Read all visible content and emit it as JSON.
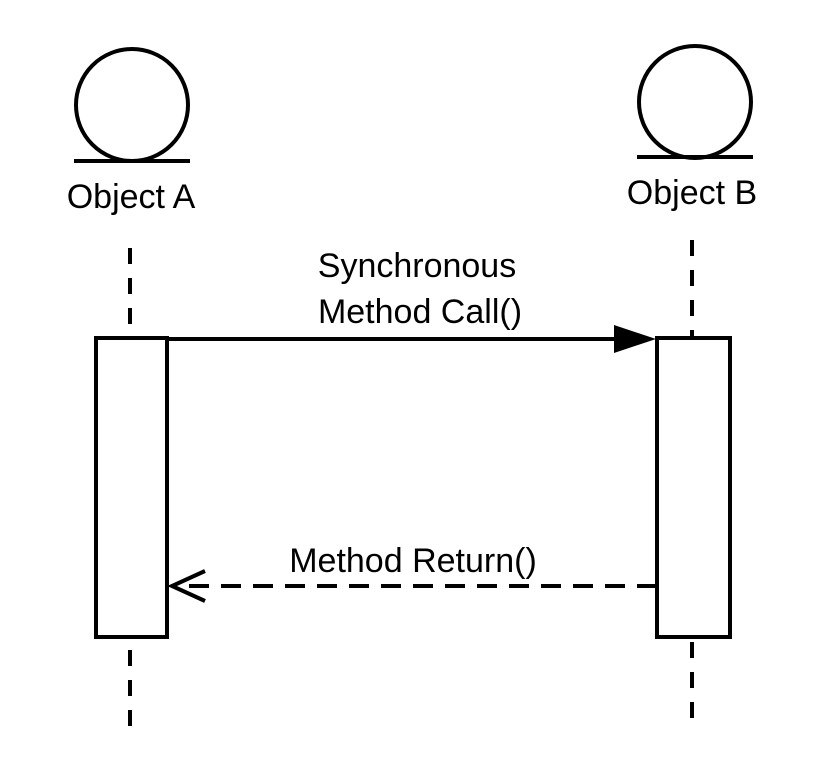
{
  "diagram": {
    "object_a": {
      "label": "Object A"
    },
    "object_b": {
      "label": "Object B"
    },
    "call_message": {
      "line1": "Synchronous",
      "line2": "Method Call()"
    },
    "return_message": {
      "label": "Method Return()"
    }
  },
  "colors": {
    "stroke": "#000000",
    "background": "#ffffff"
  },
  "icons": {
    "object_a": "actor-circle-icon",
    "object_b": "actor-circle-icon",
    "call_arrowhead": "filled-arrowhead-icon",
    "return_arrowhead": "open-arrowhead-icon"
  }
}
